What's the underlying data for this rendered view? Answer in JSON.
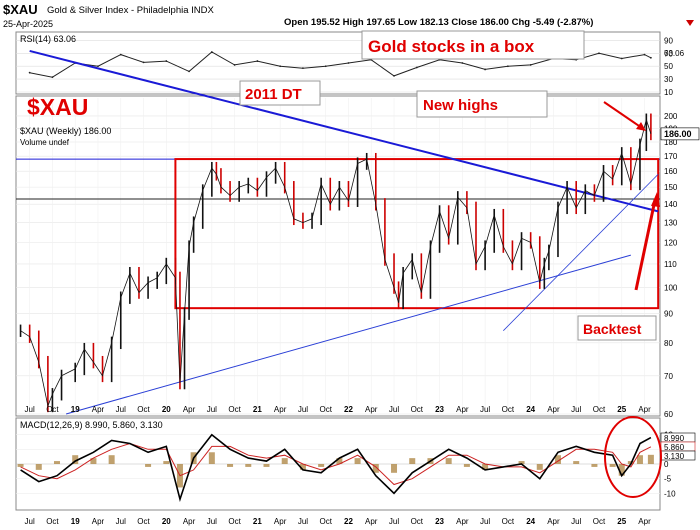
{
  "header": {
    "symbol": "$XAU",
    "name": "Gold & Silver Index - Philadelphia  INDX",
    "date": "25-Apr-2025",
    "ohlc": "Open 195.52  High 197.65  Low 182.13  Close 186.00  Chg -5.49 (-2.87%)"
  },
  "annotations": {
    "title_box": "Gold stocks in a box",
    "dt_box": "2011 DT",
    "highs_box": "New highs",
    "backtest_box": "Backtest",
    "big_symbol": "$XAU"
  },
  "colors": {
    "price": "#111111",
    "down": "#cc0000",
    "box": "#e00000",
    "downtrend": "#1a1ad6",
    "uptrend": "#2a3fd6",
    "accent_red": "#e00000",
    "macd": "#000000",
    "signal": "#cc2222",
    "hist": "#b08a4a"
  },
  "chart_data": [
    {
      "type": "line",
      "panel": "RSI",
      "title": "RSI(14) 63.06",
      "last_value": 63.06,
      "ylim": [
        10,
        100
      ],
      "y_ticks": [
        10,
        30,
        50,
        70,
        90
      ],
      "x": [
        2018.5,
        2018.75,
        2019.0,
        2019.25,
        2019.5,
        2019.75,
        2020.0,
        2020.25,
        2020.5,
        2020.75,
        2021.0,
        2021.25,
        2021.5,
        2021.75,
        2022.0,
        2022.25,
        2022.5,
        2022.75,
        2023.0,
        2023.25,
        2023.5,
        2023.75,
        2024.0,
        2024.25,
        2024.5,
        2024.75,
        2025.0,
        2025.25,
        2025.32
      ],
      "values": [
        40,
        33,
        55,
        50,
        68,
        56,
        58,
        42,
        72,
        52,
        58,
        50,
        47,
        50,
        55,
        60,
        35,
        48,
        60,
        55,
        45,
        50,
        52,
        62,
        60,
        70,
        62,
        68,
        63.06
      ],
      "grid": true
    },
    {
      "type": "line",
      "panel": "Price",
      "title": "$XAU (Weekly) 186.00",
      "subtitle": "Volume undef",
      "last_value": 186.0,
      "y_scale": "log",
      "ylim": [
        60,
        215
      ],
      "y_ticks": [
        60,
        70,
        80,
        90,
        100,
        110,
        120,
        130,
        140,
        150,
        160,
        170,
        180,
        190,
        200
      ],
      "x_tick_labels": [
        "Jul",
        "Oct",
        "19",
        "Apr",
        "Jul",
        "Oct",
        "20",
        "Apr",
        "Jul",
        "Oct",
        "21",
        "Apr",
        "Jul",
        "Oct",
        "22",
        "Apr",
        "Jul",
        "Oct",
        "23",
        "Apr",
        "Jul",
        "Oct",
        "24",
        "Apr",
        "Jul",
        "Oct",
        "25",
        "Apr"
      ],
      "x": [
        2018.4,
        2018.5,
        2018.6,
        2018.7,
        2018.75,
        2018.85,
        2019.0,
        2019.1,
        2019.2,
        2019.3,
        2019.4,
        2019.5,
        2019.6,
        2019.7,
        2019.8,
        2019.9,
        2020.0,
        2020.1,
        2020.15,
        2020.2,
        2020.25,
        2020.3,
        2020.4,
        2020.5,
        2020.55,
        2020.6,
        2020.7,
        2020.8,
        2020.9,
        2021.0,
        2021.1,
        2021.2,
        2021.3,
        2021.4,
        2021.5,
        2021.6,
        2021.7,
        2021.8,
        2021.9,
        2022.0,
        2022.1,
        2022.2,
        2022.3,
        2022.4,
        2022.5,
        2022.55,
        2022.6,
        2022.7,
        2022.8,
        2022.9,
        2023.0,
        2023.1,
        2023.2,
        2023.3,
        2023.4,
        2023.5,
        2023.6,
        2023.7,
        2023.8,
        2023.9,
        2024.0,
        2024.1,
        2024.15,
        2024.2,
        2024.3,
        2024.4,
        2024.5,
        2024.6,
        2024.7,
        2024.8,
        2024.9,
        2025.0,
        2025.1,
        2025.2,
        2025.27,
        2025.32
      ],
      "values": [
        84,
        82,
        74,
        62,
        65,
        70,
        72,
        78,
        74,
        70,
        80,
        96,
        106,
        98,
        102,
        104,
        110,
        104,
        68,
        90,
        118,
        130,
        148,
        162,
        158,
        150,
        145,
        150,
        152,
        148,
        156,
        162,
        150,
        132,
        130,
        132,
        152,
        140,
        150,
        142,
        165,
        168,
        140,
        112,
        100,
        94,
        106,
        112,
        98,
        118,
        136,
        122,
        144,
        138,
        110,
        118,
        134,
        118,
        110,
        122,
        120,
        102,
        110,
        116,
        138,
        150,
        138,
        148,
        145,
        160,
        155,
        172,
        152,
        178,
        197,
        186
      ],
      "box": [
        [
          2020.1,
          92
        ],
        [
          2025.4,
          168
        ]
      ],
      "horizontal_lines": [
        168,
        143
      ],
      "downtrend": [
        [
          2018.5,
          260
        ],
        [
          2025.4,
          136
        ]
      ],
      "uptrend": [
        [
          2018.9,
          60
        ],
        [
          2025.1,
          114
        ]
      ],
      "uptrend2": [
        [
          2023.7,
          84
        ],
        [
          2025.4,
          158
        ]
      ],
      "grid": true
    },
    {
      "type": "line",
      "panel": "MACD",
      "title": "MACD(12,26,9) 8.990, 5.860, 3.130",
      "series": [
        {
          "name": "MACD",
          "last_value": 8.99
        },
        {
          "name": "Signal",
          "last_value": 5.86
        },
        {
          "name": "Histogram",
          "last_value": 3.13
        }
      ],
      "ylim": [
        -15,
        15
      ],
      "y_ticks": [
        -10,
        -5,
        0,
        5,
        10
      ],
      "x": [
        2018.4,
        2018.6,
        2018.8,
        2019.0,
        2019.2,
        2019.4,
        2019.6,
        2019.8,
        2020.0,
        2020.15,
        2020.3,
        2020.5,
        2020.7,
        2020.9,
        2021.1,
        2021.3,
        2021.5,
        2021.7,
        2021.9,
        2022.1,
        2022.3,
        2022.5,
        2022.7,
        2022.9,
        2023.1,
        2023.3,
        2023.5,
        2023.7,
        2023.9,
        2024.1,
        2024.3,
        2024.5,
        2024.7,
        2024.9,
        2025.0,
        2025.1,
        2025.2,
        2025.32
      ],
      "macd": [
        -2,
        -6,
        -4,
        1,
        4,
        8,
        7,
        4,
        6,
        -12,
        2,
        10,
        5,
        2,
        1,
        5,
        -2,
        -3,
        2,
        5,
        -4,
        -10,
        -3,
        1,
        5,
        2,
        -2,
        -1,
        0,
        -5,
        4,
        6,
        4,
        3,
        -4,
        0,
        7,
        8.99
      ],
      "signal": [
        -1,
        -4,
        -5,
        -2,
        2,
        5,
        7,
        5,
        5,
        -4,
        -2,
        6,
        6,
        3,
        2,
        3,
        0,
        -2,
        0,
        3,
        -1,
        -7,
        -5,
        -1,
        3,
        3,
        0,
        -1,
        -1,
        -3,
        1,
        5,
        5,
        4,
        0,
        -1,
        4,
        5.86
      ],
      "grid": true
    }
  ]
}
